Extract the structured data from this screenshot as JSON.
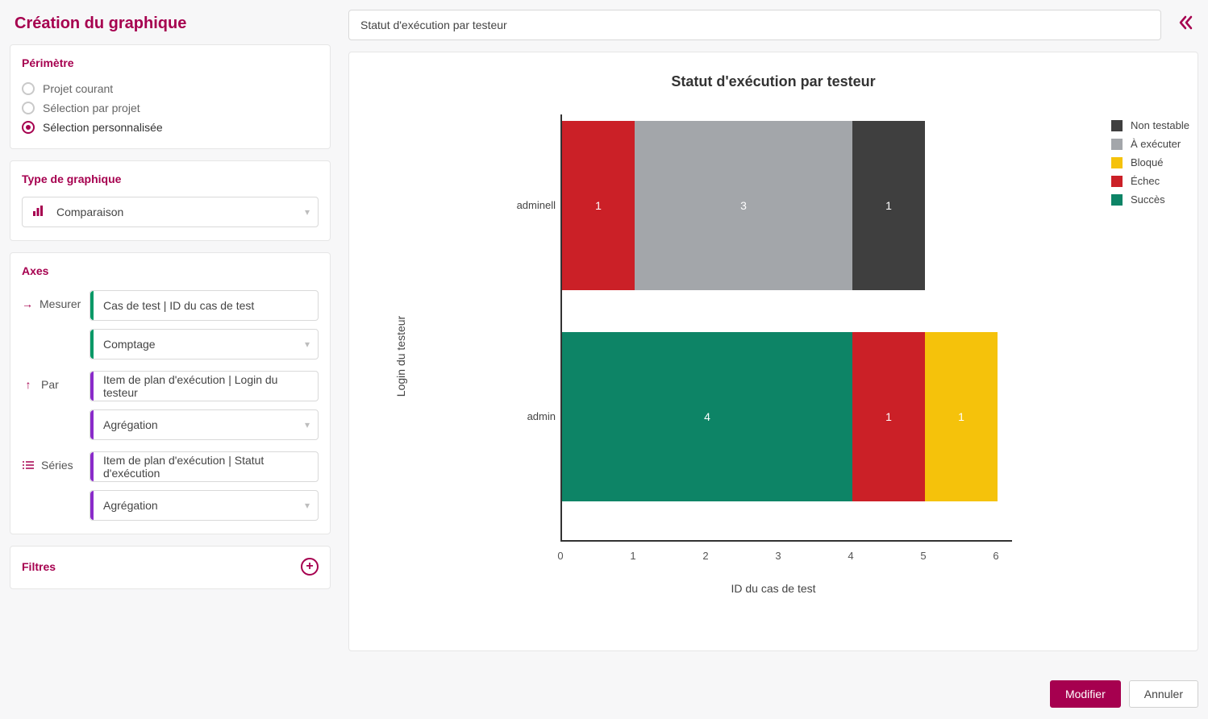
{
  "page": {
    "title": "Création du graphique"
  },
  "perimeter": {
    "heading": "Périmètre",
    "options": {
      "current": "Projet courant",
      "byProject": "Sélection par projet",
      "custom": "Sélection personnalisée"
    },
    "selected": "custom"
  },
  "chartType": {
    "heading": "Type de graphique",
    "value": "Comparaison"
  },
  "axes": {
    "heading": "Axes",
    "measure": {
      "label": "Mesurer",
      "field": "Cas de test | ID du cas de test",
      "agg": "Comptage"
    },
    "by": {
      "label": "Par",
      "field": "Item de plan d'exécution | Login du testeur",
      "agg": "Agrégation"
    },
    "series": {
      "label": "Séries",
      "field": "Item de plan d'exécution | Statut d'exécution",
      "agg": "Agrégation"
    }
  },
  "filters": {
    "heading": "Filtres"
  },
  "main": {
    "titleInput": "Statut d'exécution par testeur"
  },
  "chart": {
    "type": "stacked-horizontal-bar",
    "title": "Statut d'exécution par testeur",
    "yAxisTitle": "Login du testeur",
    "xAxisTitle": "ID du cas de test",
    "xlim": [
      0,
      6
    ],
    "xtickStep": 1,
    "unitWidthPx": 90,
    "barHeightPx": 210,
    "plotWidthPx": 552,
    "plotHeightPx": 530,
    "background": "#ffffff",
    "axisColor": "#333333",
    "labelColor": "#444444",
    "valueLabelColor": "#ffffff",
    "rows": [
      {
        "label": "adminell",
        "topPx": 8,
        "segments": [
          {
            "status": "Échec",
            "value": 1,
            "color": "#cb2027"
          },
          {
            "status": "À exécuter",
            "value": 3,
            "color": "#a3a6aa"
          },
          {
            "status": "Non testable",
            "value": 1,
            "color": "#3f3f3f"
          }
        ]
      },
      {
        "label": "admin",
        "topPx": 270,
        "segments": [
          {
            "status": "Succès",
            "value": 4,
            "color": "#0d8466"
          },
          {
            "status": "Échec",
            "value": 1,
            "color": "#cb2027"
          },
          {
            "status": "Bloqué",
            "value": 1,
            "color": "#f5c20b"
          }
        ]
      }
    ],
    "legend": [
      {
        "label": "Non testable",
        "color": "#3f3f3f"
      },
      {
        "label": "À exécuter",
        "color": "#a3a6aa"
      },
      {
        "label": "Bloqué",
        "color": "#f5c20b"
      },
      {
        "label": "Échec",
        "color": "#cb2027"
      },
      {
        "label": "Succès",
        "color": "#0d8466"
      }
    ]
  },
  "footer": {
    "modify": "Modifier",
    "cancel": "Annuler"
  }
}
